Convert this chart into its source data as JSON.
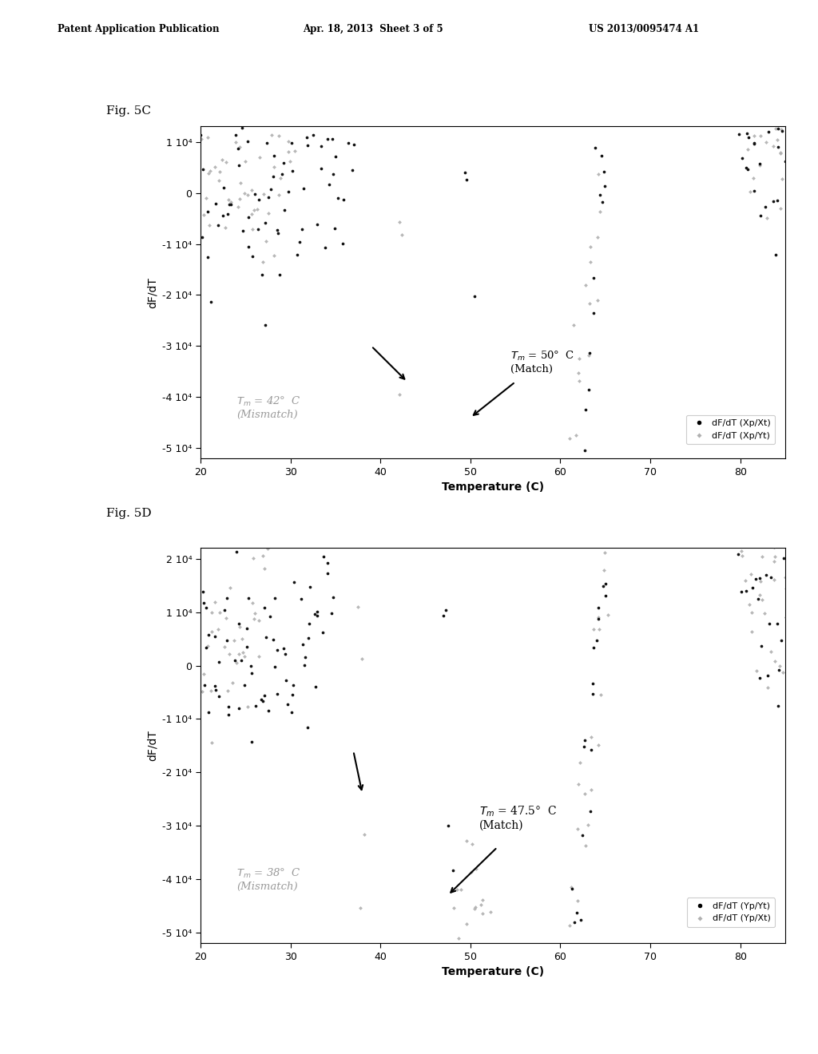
{
  "header_left": "Patent Application Publication",
  "header_mid": "Apr. 18, 2013  Sheet 3 of 5",
  "header_right": "US 2013/0095474 A1",
  "fig5c_label": "Fig. 5C",
  "fig5d_label": "Fig. 5D",
  "xlabel": "Temperature (C)",
  "ylabel": "dF/dT",
  "xlim": [
    20,
    85
  ],
  "fig5c_ylim": [
    -52000,
    13000
  ],
  "fig5d_ylim": [
    -52000,
    22000
  ],
  "fig5c_yticks": [
    10000,
    0,
    -10000,
    -20000,
    -30000,
    -40000,
    -50000
  ],
  "fig5c_ytick_labels": [
    "1 10⁴",
    "0",
    "-1 10⁴",
    "-2 10⁴",
    "-3 10⁴",
    "-4 10⁴",
    "-5 10⁴"
  ],
  "fig5d_yticks": [
    20000,
    10000,
    0,
    -10000,
    -20000,
    -30000,
    -40000,
    -50000
  ],
  "fig5d_ytick_labels": [
    "2 10⁴",
    "1 10⁴",
    "0",
    "-1 10⁴",
    "-2 10⁴",
    "-3 10⁴",
    "-4 10⁴",
    "-5 10⁴"
  ],
  "xticks": [
    20,
    30,
    40,
    50,
    60,
    70,
    80
  ],
  "background_color": "#ffffff",
  "black_dot_color": "#111111",
  "gray_dot_color": "#b0b0b0",
  "fig5c_legend1": "dF/dT (Xp/Xt)",
  "fig5c_legend2": "dF/dT (Xp/Yt)",
  "fig5d_legend1": "dF/dT (Yp/Yt)",
  "fig5d_legend2": "dF/dT (Yp/Xt)"
}
